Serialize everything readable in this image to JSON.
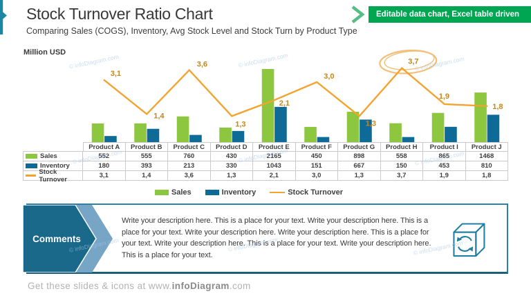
{
  "slide": {
    "title": "Stock Turnover Ratio Chart",
    "subtitle": "Comparing Sales (COGS), Inventory, Avg Stock Level and Stock Turn by Product Type",
    "badge": "Editable data chart, Excel table driven",
    "unit_label": "Million USD",
    "watermark": "© infoDiagram.com"
  },
  "chart_data": {
    "type": "combo_bar_line",
    "title": "Stock Turnover Ratio Chart",
    "unit_label": "Million USD",
    "categories": [
      "Product A",
      "Product B",
      "Product C",
      "Product D",
      "Product E",
      "Product F",
      "Product G",
      "Product H",
      "Product I",
      "Product J"
    ],
    "series": [
      {
        "name": "Sales",
        "type": "bar",
        "color": "#8DC63F",
        "values": [
          552,
          555,
          760,
          430,
          2165,
          450,
          898,
          558,
          865,
          1468
        ]
      },
      {
        "name": "Inventory",
        "type": "bar",
        "color": "#0E6A97",
        "values": [
          180,
          393,
          213,
          330,
          1043,
          151,
          667,
          150,
          453,
          810
        ]
      },
      {
        "name": "Stock Turnover",
        "type": "line",
        "axis": "secondary",
        "color": "#F2A431",
        "values": [
          3.1,
          1.4,
          3.6,
          1.3,
          2.1,
          3.0,
          1.3,
          3.7,
          1.9,
          1.8
        ],
        "labels": [
          "3,1",
          "1,4",
          "3,6",
          "1,3",
          "2,1",
          "3,0",
          "1,3",
          "3,7",
          "1,9",
          "1,8"
        ]
      }
    ],
    "bar_axis_max": 2400,
    "line_axis_max": 4.7,
    "grid": false,
    "legend_position": "bottom",
    "annotation": {
      "shape": "hand-drawn-ellipse",
      "series": "Stock Turnover",
      "point_index": 7,
      "color": "#F3BE77"
    }
  },
  "table": {
    "columns": [
      "Product A",
      "Product B",
      "Product C",
      "Product D",
      "Product E",
      "Product F",
      "Product G",
      "Product H",
      "Product I",
      "Product J"
    ],
    "rows": [
      {
        "label": "Sales",
        "swatch": "bar",
        "color": "#8DC63F",
        "values": [
          "552",
          "555",
          "760",
          "430",
          "2165",
          "450",
          "898",
          "558",
          "865",
          "1468"
        ]
      },
      {
        "label": "Inventory",
        "swatch": "bar",
        "color": "#0E6A97",
        "values": [
          "180",
          "393",
          "213",
          "330",
          "1043",
          "151",
          "667",
          "150",
          "453",
          "810"
        ]
      },
      {
        "label": "Stock Turnover",
        "swatch": "line",
        "color": "#F2A431",
        "values": [
          "3,1",
          "1,4",
          "3,6",
          "1,3",
          "2,1",
          "3,0",
          "1,3",
          "3,7",
          "1,9",
          "1,8"
        ]
      }
    ]
  },
  "legend": {
    "items": [
      {
        "label": "Sales",
        "swatch": "bar",
        "color": "#8DC63F"
      },
      {
        "label": "Inventory",
        "swatch": "bar",
        "color": "#0E6A97"
      },
      {
        "label": "Stock Turnover",
        "swatch": "line",
        "color": "#F2A431"
      }
    ]
  },
  "comments": {
    "heading": "Comments",
    "body": "Write your description here. This is a place for your text. Write your description here. This is a place for your text. Write your description here. Write your description here. This is a place for your text. Write your description here. This is a place for your text. Write your description here. This is a place for your text.",
    "icon": "cube-refresh-icon"
  },
  "footer": {
    "prefix": "Get these slides & icons at www.",
    "brand": "infoDiagram",
    "suffix": ".com"
  },
  "colors": {
    "sales": "#8DC63F",
    "inventory": "#0E6A97",
    "line": "#F2A431",
    "line_label": "#C5861B",
    "badge_green": "#00A651",
    "accent_teal": "#1B87A5",
    "comments_dark": "#1A698A",
    "comments_light": "#76A5C5",
    "box_border": "#2C7FA5",
    "table_border": "#C9C9C9",
    "watermark_blue": "#A8C6E5"
  }
}
